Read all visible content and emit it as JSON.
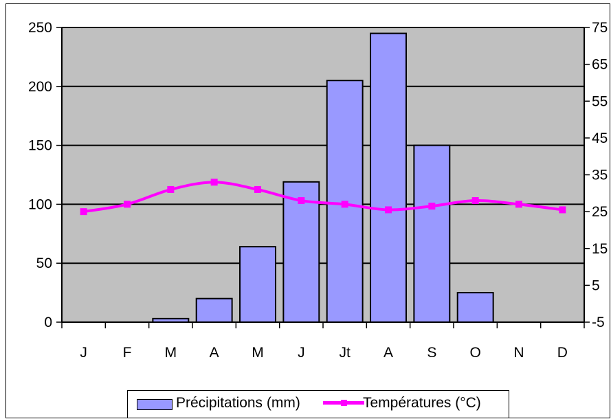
{
  "chart_data": {
    "type": "bar",
    "categories": [
      "J",
      "F",
      "M",
      "A",
      "M",
      "J",
      "Jt",
      "A",
      "S",
      "O",
      "N",
      "D"
    ],
    "series": [
      {
        "name": "Précipitations (mm)",
        "type": "bar",
        "axis": "left",
        "color": "#9999ff",
        "values": [
          0,
          0,
          3,
          20,
          64,
          119,
          205,
          245,
          150,
          25,
          0,
          0
        ]
      },
      {
        "name": "Températures (°C)",
        "type": "line",
        "axis": "right",
        "color": "#ff00ff",
        "values": [
          25,
          27,
          31,
          33,
          31,
          28,
          27,
          25.5,
          26.5,
          28,
          27,
          25.5
        ]
      }
    ],
    "y_left": {
      "ylim": [
        0,
        250
      ],
      "ticks": [
        "0",
        "50",
        "100",
        "150",
        "200",
        "250"
      ]
    },
    "y_right": {
      "ylim": [
        -5,
        75
      ],
      "ticks": [
        "-5",
        "5",
        "15",
        "25",
        "35",
        "45",
        "55",
        "65",
        "75"
      ]
    },
    "grid": true,
    "plot_background": "#c0c0c0",
    "legend": {
      "placement": "bottom",
      "items": [
        {
          "label": "Précipitations (mm)",
          "color": "#9999ff"
        },
        {
          "label": "Températures (°C)",
          "color": "#ff00ff"
        }
      ]
    }
  }
}
